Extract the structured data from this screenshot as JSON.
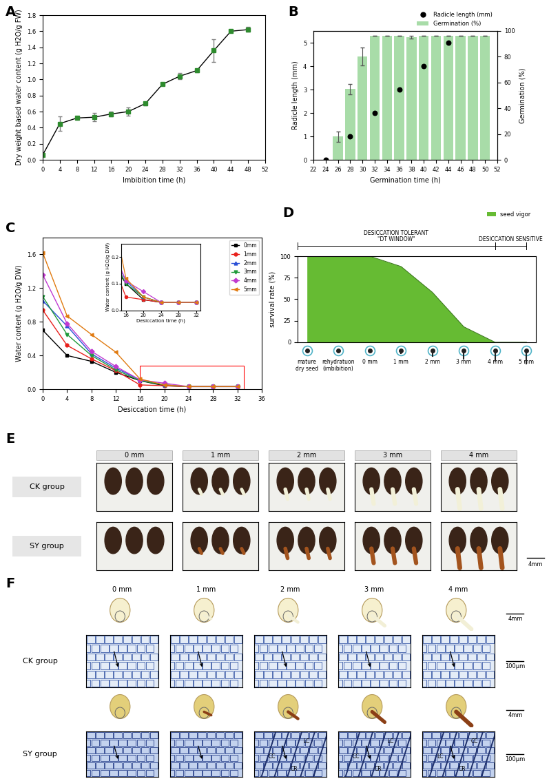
{
  "chart_data": [
    {
      "panel": "A",
      "type": "line",
      "x": [
        0,
        4,
        8,
        12,
        16,
        20,
        24,
        28,
        32,
        36,
        40,
        44,
        48
      ],
      "series": [
        {
          "color": "#2e8b2e",
          "marker": "square",
          "values": [
            0.06,
            0.45,
            0.52,
            0.53,
            0.57,
            0.6,
            0.7,
            0.94,
            1.04,
            1.11,
            1.36,
            1.6,
            1.62
          ],
          "errors": [
            0.01,
            0.09,
            0.02,
            0.05,
            0.03,
            0.05,
            0.02,
            0.01,
            0.04,
            0.02,
            0.14,
            0.01,
            0.03
          ]
        }
      ],
      "xlabel": "Imbibition time (h)",
      "ylabel": "Dry weight based water content (g H2O/g FW)",
      "xlim": [
        0,
        52
      ],
      "xticks": [
        0,
        4,
        8,
        12,
        16,
        20,
        24,
        28,
        32,
        36,
        40,
        44,
        48,
        52
      ],
      "ylim": [
        0.0,
        1.8
      ],
      "yticks": [
        0.0,
        0.2,
        0.4,
        0.6,
        0.8,
        1.0,
        1.2,
        1.4,
        1.6,
        1.8
      ]
    },
    {
      "panel": "B",
      "type": "bar",
      "x": [
        24,
        26,
        28,
        30,
        32,
        34,
        36,
        38,
        40,
        42,
        44,
        46,
        48,
        50
      ],
      "series": [
        {
          "name": "Radicle length (mm)",
          "type": "scatter",
          "color": "#000000",
          "marker": "circle",
          "values": [
            0,
            null,
            1,
            null,
            2,
            null,
            3,
            null,
            4,
            null,
            5,
            null,
            null,
            null
          ]
        },
        {
          "name": "Germination (%)",
          "type": "bar",
          "axis": "y2",
          "color": "#a8dca8",
          "values": [
            0,
            18,
            55,
            80,
            96,
            96,
            96,
            95,
            96,
            96,
            96,
            96,
            96,
            96
          ],
          "errors": [
            0,
            4,
            4,
            7,
            0,
            0,
            0,
            1,
            0,
            0,
            0,
            0,
            0,
            0
          ]
        }
      ],
      "xlabel": "Germination time (h)",
      "ylabel": "Radicle length (mm)",
      "y2label": "Germination (%)",
      "xlim": [
        22,
        52
      ],
      "xticks": [
        22,
        24,
        26,
        28,
        30,
        32,
        34,
        36,
        38,
        40,
        42,
        44,
        46,
        48,
        50,
        52
      ],
      "ylim": [
        0,
        5.5
      ],
      "yticks": [
        0,
        1,
        2,
        3,
        4,
        5
      ],
      "y2lim": [
        0,
        100
      ],
      "y2ticks": [
        0,
        20,
        40,
        60,
        80,
        100
      ],
      "legend": "upper right"
    },
    {
      "panel": "C",
      "type": "line",
      "x": [
        0,
        4,
        8,
        12,
        16,
        20,
        24,
        28,
        32
      ],
      "series": [
        {
          "name": "0mm",
          "color": "#000000",
          "marker": "square",
          "values": [
            0.7,
            0.4,
            0.33,
            0.2,
            0.1,
            0.04,
            0.03,
            0.03,
            0.03
          ]
        },
        {
          "name": "1mm",
          "color": "#e8201c",
          "marker": "circle",
          "values": [
            0.94,
            0.52,
            0.36,
            0.22,
            0.05,
            0.04,
            0.03,
            0.03,
            0.03
          ]
        },
        {
          "name": "2mm",
          "color": "#2a4fd6",
          "marker": "triangle",
          "values": [
            1.05,
            0.75,
            0.42,
            0.25,
            0.11,
            0.05,
            0.03,
            0.03,
            0.03
          ]
        },
        {
          "name": "3mm",
          "color": "#1f9a3a",
          "marker": "triangle_down",
          "values": [
            1.1,
            0.65,
            0.4,
            0.23,
            0.1,
            0.05,
            0.03,
            0.03,
            0.03
          ]
        },
        {
          "name": "4mm",
          "color": "#c03ad0",
          "marker": "diamond",
          "values": [
            1.36,
            0.78,
            0.45,
            0.27,
            0.11,
            0.07,
            0.03,
            0.03,
            0.03
          ]
        },
        {
          "name": "5mm",
          "color": "#e07a10",
          "marker": "triangle_left",
          "values": [
            1.62,
            0.87,
            0.65,
            0.44,
            0.12,
            0.05,
            0.03,
            0.03,
            0.03
          ]
        }
      ],
      "xlabel": "Desiccation time (h)",
      "ylabel": "Water content (g H2O/g DW)",
      "xlim": [
        0,
        36
      ],
      "xticks": [
        0,
        4,
        8,
        12,
        16,
        20,
        24,
        28,
        32,
        36
      ],
      "ylim": [
        0.0,
        1.8
      ],
      "yticks": [
        0.0,
        0.4,
        0.8,
        1.2,
        1.6
      ],
      "legend": "upper right",
      "inset": {
        "xlabel": "Desiccation time (h)",
        "ylabel": "Water content (g H2O/g DW)",
        "xlim": [
          15,
          33
        ],
        "xticks": [
          16,
          20,
          24,
          28,
          32
        ],
        "ylim": [
          0.0,
          0.25
        ],
        "yticks": [
          0.0,
          0.1,
          0.2
        ]
      }
    },
    {
      "panel": "D",
      "type": "area",
      "categories": [
        "mature\ndry seed",
        "rehydratuon\n(imbibition)",
        "0 mm",
        "1 mm",
        "2 mm",
        "3 mm",
        "4 mm",
        "5 mm"
      ],
      "series": [
        {
          "name": "seed vigor",
          "color": "#66bb33",
          "values": [
            100,
            100,
            100,
            88,
            58,
            18,
            0,
            0
          ]
        }
      ],
      "ylabel": "survival rate (%)",
      "ylim": [
        0,
        100
      ],
      "yticks": [
        0,
        25,
        50,
        75,
        100
      ],
      "legend": "upper right",
      "regions": [
        {
          "label": "DESICCATION TOLERANT",
          "sublabel": "\"DT WINDOW\"",
          "from": "mature\ndry seed",
          "to": "4 mm"
        },
        {
          "label": "DESICCATION SENSITIVE",
          "from": "4 mm",
          "to": "5 mm"
        }
      ]
    }
  ],
  "image_panels": [
    {
      "panel": "E",
      "columns": [
        "0 mm",
        "1 mm",
        "2 mm",
        "3 mm",
        "4 mm"
      ],
      "rows": [
        "CK group",
        "SY group"
      ],
      "scale_bar": "4mm"
    },
    {
      "panel": "F",
      "columns": [
        "0 mm",
        "1 mm",
        "2 mm",
        "3 mm",
        "4 mm"
      ],
      "rows": [
        "CK group",
        "SY group"
      ],
      "scale_bars": [
        "4mm",
        "100µm"
      ],
      "micrograph_labels": {
        "CK group": [
          [],
          [],
          [],
          [],
          []
        ],
        "SY group": [
          [],
          [],
          [
            "LC",
            "CC",
            "CR"
          ],
          [
            "LC",
            "CC",
            "CR"
          ],
          [
            "CC",
            "LC",
            "CR"
          ]
        ]
      }
    }
  ]
}
